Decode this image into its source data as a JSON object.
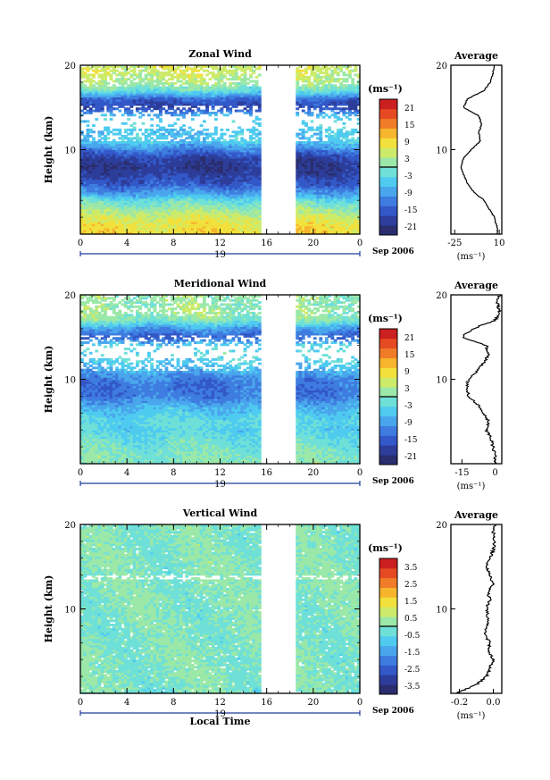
{
  "chart_data": [
    {
      "type": "heatmap",
      "title": "Zonal Wind",
      "ylabel": "Height (km)",
      "xticks": [
        "0",
        "4",
        "8",
        "12",
        "16",
        "20",
        "0"
      ],
      "yticks": [
        "10",
        "20"
      ],
      "ylim": [
        0,
        20
      ],
      "xlim": [
        0,
        24
      ],
      "date_day": "19",
      "date_label": "Sep 2006",
      "gap_hours": [
        15.5,
        18.5
      ],
      "colorbar": {
        "unit": "(ms⁻¹)",
        "ticks": [
          "21",
          "15",
          "9",
          "3",
          "-3",
          "-9",
          "-15",
          "-21"
        ],
        "range": [
          -24,
          24
        ]
      },
      "height_km": [
        0,
        1,
        2,
        3,
        4,
        5,
        6,
        7,
        8,
        9,
        10,
        11,
        12,
        13,
        14,
        15,
        16,
        17,
        18,
        19,
        20
      ],
      "mean_wind": [
        9,
        8,
        6,
        2,
        -2,
        -10,
        -15,
        -18,
        -20,
        -18,
        -12,
        -5,
        -6,
        -4,
        -6,
        -18,
        -15,
        -2,
        3,
        5,
        6
      ],
      "average": {
        "title": "Average",
        "xticks": [
          "-25",
          "10"
        ],
        "xunit": "(ms⁻¹)",
        "yticks": [
          "10",
          "20"
        ],
        "xlim": [
          -28,
          12
        ]
      }
    },
    {
      "type": "heatmap",
      "title": "Meridional Wind",
      "ylabel": "Height (km)",
      "xticks": [
        "0",
        "4",
        "8",
        "12",
        "16",
        "20",
        "0"
      ],
      "yticks": [
        "10",
        "20"
      ],
      "ylim": [
        0,
        20
      ],
      "xlim": [
        0,
        24
      ],
      "date_day": "19",
      "date_label": "Sep 2006",
      "gap_hours": [
        15.5,
        18.5
      ],
      "colorbar": {
        "unit": "(ms⁻¹)",
        "ticks": [
          "21",
          "15",
          "9",
          "3",
          "-3",
          "-9",
          "-15",
          "-21"
        ],
        "range": [
          -24,
          24
        ]
      },
      "height_km": [
        0,
        1,
        2,
        3,
        4,
        5,
        6,
        7,
        8,
        9,
        10,
        11,
        12,
        13,
        14,
        15,
        16,
        17,
        18,
        19,
        20
      ],
      "mean_wind": [
        0,
        0,
        -1,
        -2,
        -4,
        -3,
        -5,
        -8,
        -12,
        -13,
        -12,
        -8,
        -5,
        -3,
        -4,
        -15,
        -10,
        0,
        2,
        1,
        2
      ],
      "average": {
        "title": "Average",
        "xticks": [
          "-15",
          "0"
        ],
        "xunit": "(ms⁻¹)",
        "yticks": [
          "10",
          "20"
        ],
        "xlim": [
          -20,
          3
        ]
      }
    },
    {
      "type": "heatmap",
      "title": "Vertical Wind",
      "ylabel": "Height (km)",
      "xlabel": "Local Time",
      "xticks": [
        "0",
        "4",
        "8",
        "12",
        "16",
        "20",
        "0"
      ],
      "yticks": [
        "10",
        "20"
      ],
      "ylim": [
        0,
        20
      ],
      "xlim": [
        0,
        24
      ],
      "date_day": "19",
      "date_label": "Sep 2006",
      "gap_hours": [
        15.5,
        18.5
      ],
      "colorbar": {
        "unit": "(ms⁻¹)",
        "ticks": [
          "3.5",
          "2.5",
          "1.5",
          "0.5",
          "-0.5",
          "-1.5",
          "-2.5",
          "-3.5"
        ],
        "range": [
          -4,
          4
        ]
      },
      "height_km": [
        0,
        1,
        2,
        3,
        4,
        5,
        6,
        7,
        8,
        9,
        10,
        11,
        12,
        13,
        14,
        15,
        16,
        17,
        18,
        19,
        20
      ],
      "mean_wind": [
        -0.22,
        -0.1,
        -0.04,
        -0.02,
        0,
        -0.03,
        -0.02,
        -0.05,
        -0.04,
        -0.03,
        -0.04,
        -0.02,
        -0.03,
        0,
        -0.02,
        -0.04,
        -0.02,
        0,
        0.01,
        0,
        0.01
      ],
      "average": {
        "title": "Average",
        "xticks": [
          "-0.2",
          "0.0"
        ],
        "xunit": "(ms⁻¹)",
        "yticks": [
          "10",
          "20"
        ],
        "xlim": [
          -0.25,
          0.05
        ]
      }
    }
  ],
  "palette": [
    "#2a2e6e",
    "#2d3d9a",
    "#3358c8",
    "#3e7ce0",
    "#4aa6ec",
    "#4fcbf0",
    "#6fe0d8",
    "#9be8a8",
    "#cdeb6a",
    "#f2e13d",
    "#f7b52d",
    "#f17c28",
    "#e64a22",
    "#cc1f1f"
  ]
}
